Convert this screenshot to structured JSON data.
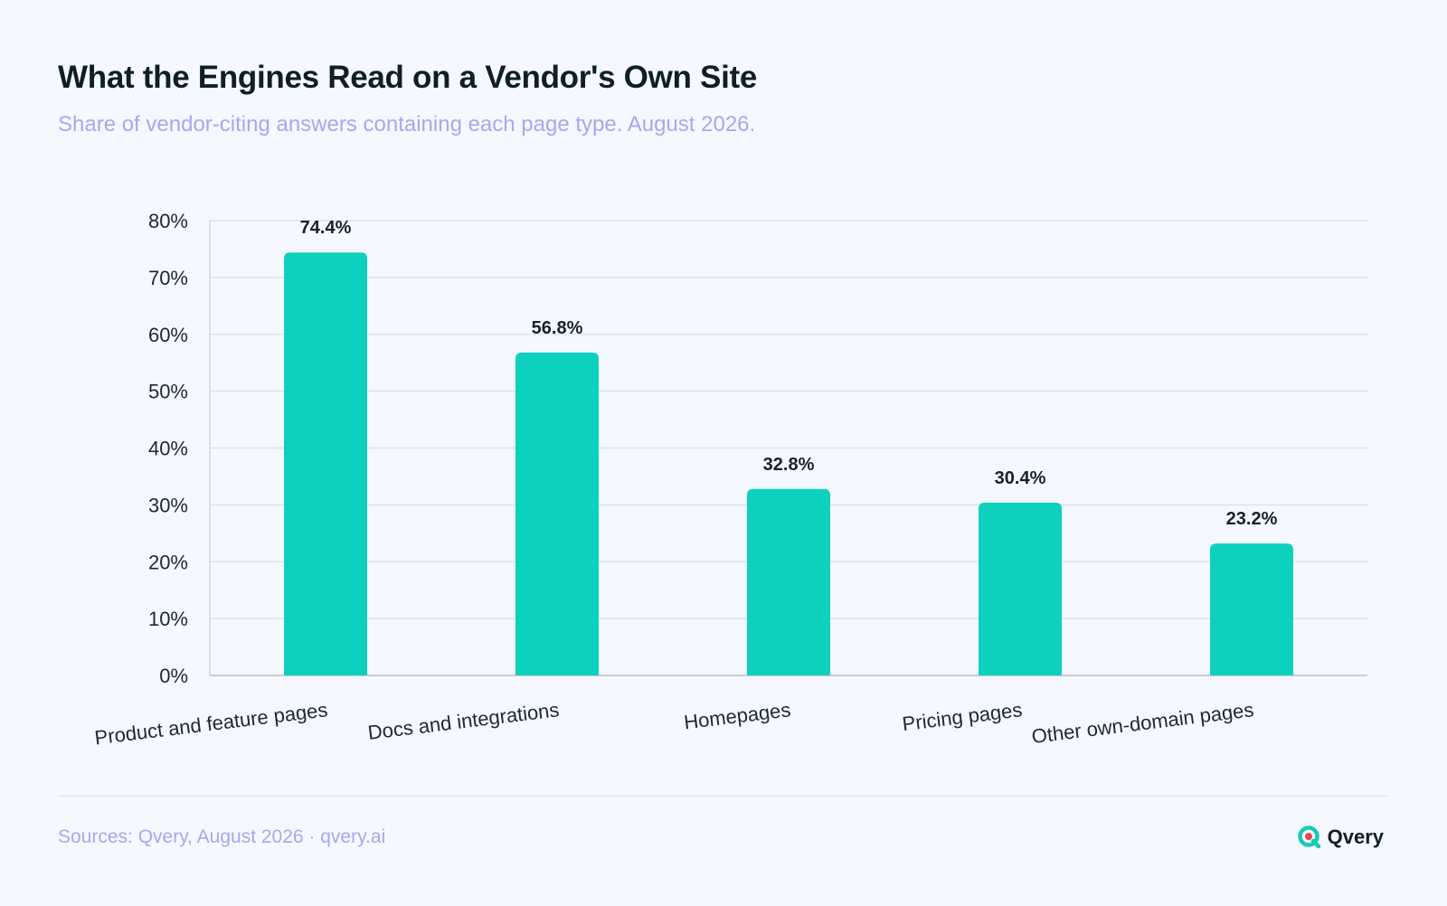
{
  "header": {
    "title": "What the Engines Read on a Vendor's Own Site",
    "subtitle": "Share of vendor-citing answers containing each page type. August 2026."
  },
  "chart_data": {
    "type": "bar",
    "categories": [
      "Product and feature pages",
      "Docs and integrations",
      "Homepages",
      "Pricing pages",
      "Other own-domain pages"
    ],
    "values": [
      74.4,
      56.8,
      32.8,
      30.4,
      23.2
    ],
    "value_labels": [
      "74.4%",
      "56.8%",
      "32.8%",
      "30.4%",
      "23.2%"
    ],
    "y_ticks": [
      0,
      10,
      20,
      30,
      40,
      50,
      60,
      70,
      80
    ],
    "y_tick_labels": [
      "0%",
      "10%",
      "20%",
      "30%",
      "40%",
      "50%",
      "60%",
      "70%",
      "80%"
    ],
    "ylim": [
      0,
      80
    ],
    "grid": true,
    "bar_color": "#0dd1be",
    "title": "",
    "xlabel": "",
    "ylabel": ""
  },
  "footer": {
    "source": "Sources: Qvery, August 2026 · qvery.ai",
    "brand_name": "Qvery",
    "logo_icon": "qvery-logo-icon",
    "logo_color": "#19c9b4",
    "logo_accent": "#e5484d"
  }
}
